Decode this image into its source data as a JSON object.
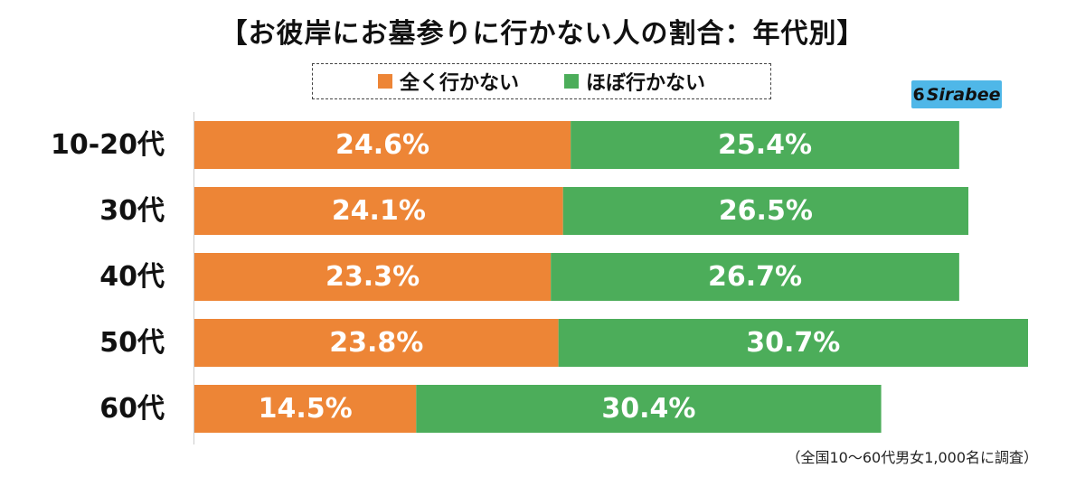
{
  "chart_data": {
    "type": "bar",
    "orientation": "horizontal",
    "stacked": true,
    "title": "【お彼岸にお墓参りに行かない人の割合：年代別】",
    "categories": [
      "10-20代",
      "30代",
      "40代",
      "50代",
      "60代"
    ],
    "series": [
      {
        "name": "全く行かない",
        "color": "#ed8536",
        "values": [
          24.6,
          24.1,
          23.3,
          23.8,
          14.5
        ],
        "labels": [
          "24.6%",
          "24.1%",
          "23.3%",
          "23.8%",
          "14.5%"
        ]
      },
      {
        "name": "ほぼ行かない",
        "color": "#4cad5a",
        "values": [
          25.4,
          26.5,
          26.7,
          30.7,
          30.4
        ],
        "labels": [
          "25.4%",
          "26.5%",
          "26.7%",
          "30.7%",
          "30.4%"
        ]
      }
    ],
    "xlim": [
      0,
      54.5
    ],
    "legend_position": "top",
    "grid": false
  },
  "brand": {
    "text": "Sirabee",
    "mark": "6"
  },
  "footnote": "（全国10〜60代男女1,000名に調査）"
}
